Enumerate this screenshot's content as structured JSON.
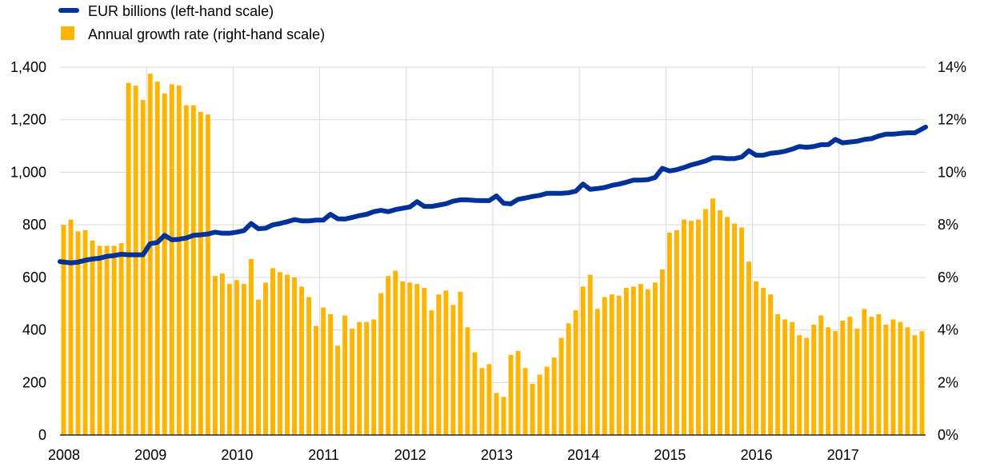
{
  "chart_data": {
    "type": "bar+line",
    "legend": [
      {
        "key": "line",
        "label": "EUR billions (left-hand scale)",
        "color": "#003299",
        "marker": "line"
      },
      {
        "key": "bars",
        "label": "Annual growth rate (right-hand scale)",
        "color": "#FFB400",
        "marker": "square"
      }
    ],
    "x_ticks": [
      "2008",
      "2009",
      "2010",
      "2011",
      "2012",
      "2013",
      "2014",
      "2015",
      "2016",
      "2017"
    ],
    "left_axis": {
      "min": 0,
      "max": 1400,
      "ticks": [
        "0",
        "200",
        "400",
        "600",
        "800",
        "1,000",
        "1,200",
        "1,400"
      ]
    },
    "right_axis": {
      "min": 0,
      "max": 14,
      "ticks": [
        "0%",
        "2%",
        "4%",
        "6%",
        "8%",
        "10%",
        "12%",
        "14%"
      ]
    },
    "grid": true,
    "months_start": "2008-01",
    "series": [
      {
        "name": "EUR billions (left-hand scale)",
        "axis": "left",
        "kind": "line",
        "values": [
          660,
          655,
          658,
          665,
          670,
          673,
          680,
          683,
          688,
          686,
          686,
          686,
          728,
          733,
          760,
          743,
          745,
          750,
          760,
          762,
          765,
          772,
          768,
          768,
          772,
          778,
          805,
          785,
          787,
          800,
          805,
          812,
          820,
          815,
          815,
          818,
          818,
          840,
          823,
          822,
          828,
          835,
          840,
          850,
          855,
          850,
          858,
          863,
          868,
          888,
          870,
          870,
          875,
          880,
          890,
          895,
          895,
          893,
          892,
          892,
          910,
          882,
          880,
          897,
          902,
          908,
          912,
          920,
          920,
          920,
          922,
          928,
          955,
          935,
          938,
          942,
          950,
          955,
          962,
          970,
          970,
          972,
          980,
          1015,
          1005,
          1010,
          1018,
          1028,
          1035,
          1043,
          1055,
          1055,
          1052,
          1052,
          1058,
          1082,
          1065,
          1065,
          1072,
          1075,
          1080,
          1088,
          1098,
          1095,
          1098,
          1105,
          1105,
          1125,
          1112,
          1115,
          1118,
          1125,
          1128,
          1138,
          1145,
          1145,
          1148,
          1150,
          1150,
          1172
        ]
      },
      {
        "name": "Annual growth rate (right-hand scale)",
        "axis": "right",
        "kind": "bar",
        "values": [
          8.0,
          8.2,
          7.75,
          7.8,
          7.4,
          7.2,
          7.2,
          7.2,
          7.3,
          13.4,
          13.3,
          12.75,
          13.75,
          13.45,
          13.0,
          13.35,
          13.3,
          12.55,
          12.55,
          12.3,
          12.2,
          6.05,
          6.15,
          5.75,
          5.9,
          5.75,
          6.7,
          5.15,
          5.8,
          6.35,
          6.2,
          6.1,
          6.0,
          5.65,
          5.25,
          4.15,
          4.85,
          4.6,
          3.4,
          4.55,
          4.05,
          4.3,
          4.3,
          4.4,
          5.4,
          6.05,
          6.25,
          5.85,
          5.8,
          5.75,
          5.6,
          4.75,
          5.35,
          5.5,
          4.95,
          5.45,
          4.1,
          3.15,
          2.55,
          2.7,
          1.6,
          1.45,
          3.05,
          3.2,
          2.55,
          1.95,
          2.3,
          2.6,
          2.95,
          3.7,
          4.25,
          4.75,
          5.65,
          6.1,
          4.8,
          5.25,
          5.35,
          5.3,
          5.6,
          5.65,
          5.75,
          5.55,
          5.8,
          6.3,
          7.7,
          7.8,
          8.2,
          8.15,
          8.2,
          8.6,
          9.0,
          8.55,
          8.3,
          8.05,
          7.9,
          6.6,
          5.85,
          5.6,
          5.35,
          4.6,
          4.4,
          4.3,
          3.8,
          3.7,
          4.2,
          4.55,
          4.1,
          3.95,
          4.35,
          4.5,
          4.05,
          4.8,
          4.5,
          4.6,
          4.2,
          4.4,
          4.3,
          4.1,
          3.8,
          3.95
        ]
      }
    ]
  }
}
